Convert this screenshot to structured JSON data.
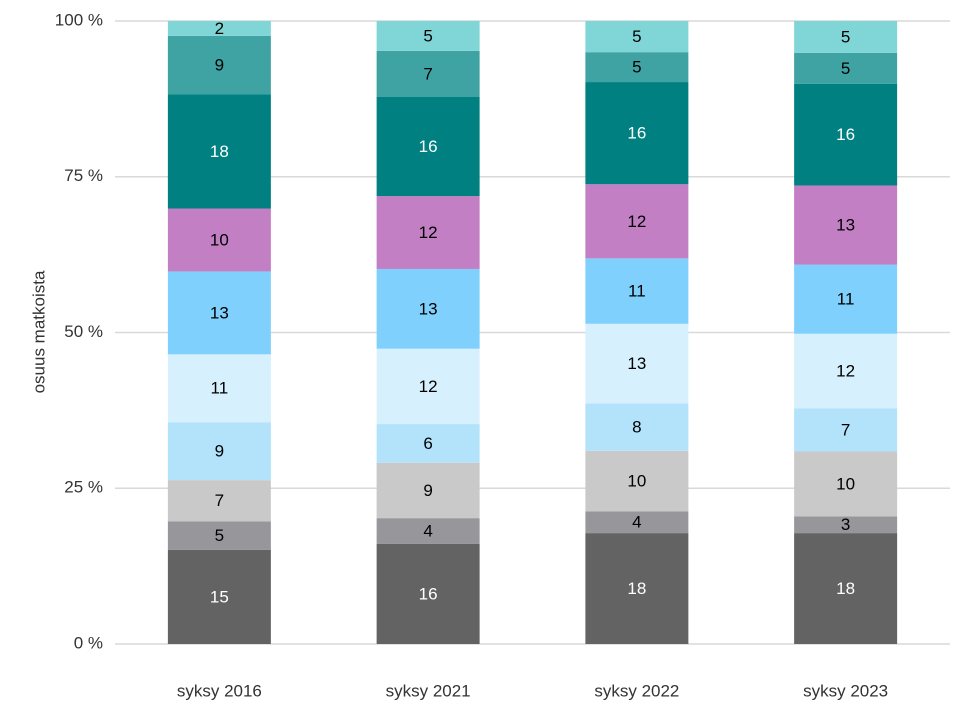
{
  "chart_data": {
    "type": "stacked_bar",
    "ylabel": "osuus matkoista",
    "categories": [
      "syksy 2016",
      "syksy 2021",
      "syksy 2022",
      "syksy 2023"
    ],
    "ylim": [
      0,
      100
    ],
    "yticks": [
      {
        "value": 0,
        "label": "0 %"
      },
      {
        "value": 25,
        "label": "25 %"
      },
      {
        "value": 50,
        "label": "50 %"
      },
      {
        "value": 75,
        "label": "75 %"
      },
      {
        "value": 100,
        "label": "100 %"
      }
    ],
    "grid": true,
    "series": [
      {
        "color": "#636363",
        "label_color": "#ffffff",
        "values": [
          15.1,
          16.1,
          17.8,
          17.8
        ],
        "value_labels": [
          "15",
          "16",
          "18",
          "18"
        ]
      },
      {
        "color": "#97979b",
        "label_color": "#000000",
        "values": [
          4.6,
          4.1,
          3.5,
          2.7
        ],
        "value_labels": [
          "5",
          "4",
          "4",
          "3"
        ]
      },
      {
        "color": "#c9c9c9",
        "label_color": "#000000",
        "values": [
          6.6,
          8.9,
          9.7,
          10.4
        ],
        "value_labels": [
          "7",
          "9",
          "10",
          "10"
        ]
      },
      {
        "color": "#b3e2fb",
        "label_color": "#000000",
        "values": [
          9.3,
          6.2,
          7.6,
          6.9
        ],
        "value_labels": [
          "9",
          "6",
          "8",
          "7"
        ]
      },
      {
        "color": "#d6f1fd",
        "label_color": "#000000",
        "values": [
          10.9,
          12.1,
          12.8,
          12.0
        ],
        "value_labels": [
          "11",
          "12",
          "13",
          "12"
        ]
      },
      {
        "color": "#80d0fd",
        "label_color": "#000000",
        "values": [
          13.3,
          12.8,
          10.5,
          11.1
        ],
        "value_labels": [
          "13",
          "13",
          "11",
          "11"
        ]
      },
      {
        "color": "#c27fc4",
        "label_color": "#000000",
        "values": [
          10.1,
          11.7,
          11.9,
          12.7
        ],
        "value_labels": [
          "10",
          "12",
          "12",
          "13"
        ]
      },
      {
        "color": "#008080",
        "label_color": "#ffffff",
        "values": [
          18.3,
          15.9,
          16.4,
          16.3
        ],
        "value_labels": [
          "18",
          "16",
          "16",
          "16"
        ]
      },
      {
        "color": "#40a3a3",
        "label_color": "#000000",
        "values": [
          9.4,
          7.4,
          4.8,
          5.0
        ],
        "value_labels": [
          "9",
          "7",
          "5",
          "5"
        ]
      },
      {
        "color": "#80d6d6",
        "label_color": "#000000",
        "values": [
          2.4,
          4.8,
          5.0,
          5.1
        ],
        "value_labels": [
          "2",
          "5",
          "5",
          "5"
        ]
      }
    ]
  }
}
